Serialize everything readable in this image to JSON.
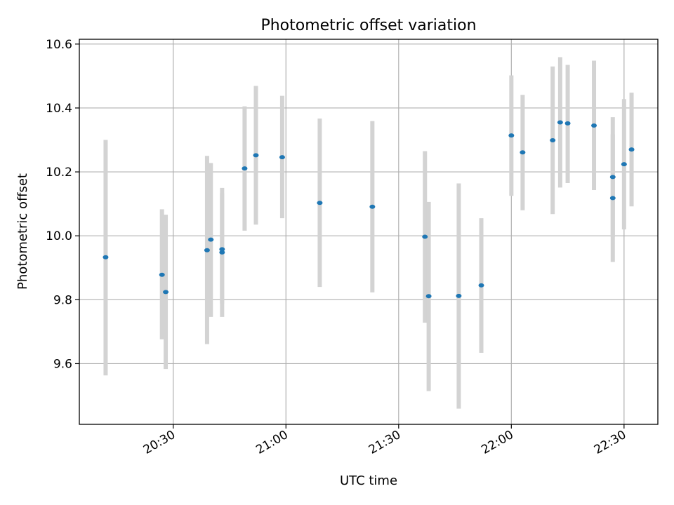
{
  "chart_data": {
    "type": "scatter",
    "title": "Photometric offset variation",
    "xlabel": "UTC time",
    "ylabel": "Photometric offset",
    "xlim": [
      "20:05",
      "22:39"
    ],
    "ylim": [
      9.41,
      10.615
    ],
    "x_ticks": [
      "20:30",
      "21:00",
      "21:30",
      "22:00",
      "22:30"
    ],
    "y_ticks": [
      "9.6",
      "9.8",
      "10.0",
      "10.2",
      "10.4",
      "10.6"
    ],
    "grid": true,
    "colors": {
      "point": "#1f77b4",
      "errorbar": "#d3d3d3",
      "grid": "#b0b0b0",
      "axes": "#000000"
    },
    "points": [
      {
        "x": "20:12",
        "y": 9.933,
        "yerr_low": 9.563,
        "yerr_high": 10.3
      },
      {
        "x": "20:27",
        "y": 9.878,
        "yerr_low": 9.676,
        "yerr_high": 10.083
      },
      {
        "x": "20:28",
        "y": 9.824,
        "yerr_low": 9.583,
        "yerr_high": 10.066
      },
      {
        "x": "20:39",
        "y": 9.955,
        "yerr_low": 9.661,
        "yerr_high": 10.25
      },
      {
        "x": "20:40",
        "y": 9.988,
        "yerr_low": 9.746,
        "yerr_high": 10.228
      },
      {
        "x": "20:43",
        "y": 9.948,
        "yerr_low": 9.746,
        "yerr_high": 10.15
      },
      {
        "x": "20:43",
        "y": 9.958,
        "yerr_low": 9.788,
        "yerr_high": 10.133
      },
      {
        "x": "20:49",
        "y": 10.211,
        "yerr_low": 10.016,
        "yerr_high": 10.405
      },
      {
        "x": "20:52",
        "y": 10.252,
        "yerr_low": 10.035,
        "yerr_high": 10.469
      },
      {
        "x": "20:59",
        "y": 10.246,
        "yerr_low": 10.055,
        "yerr_high": 10.438
      },
      {
        "x": "21:09",
        "y": 10.103,
        "yerr_low": 9.84,
        "yerr_high": 10.367
      },
      {
        "x": "21:23",
        "y": 10.091,
        "yerr_low": 9.823,
        "yerr_high": 10.359
      },
      {
        "x": "21:37",
        "y": 9.997,
        "yerr_low": 9.728,
        "yerr_high": 10.265
      },
      {
        "x": "21:38",
        "y": 9.811,
        "yerr_low": 9.514,
        "yerr_high": 10.106
      },
      {
        "x": "21:46",
        "y": 9.812,
        "yerr_low": 9.459,
        "yerr_high": 10.164
      },
      {
        "x": "21:52",
        "y": 9.845,
        "yerr_low": 9.634,
        "yerr_high": 10.055
      },
      {
        "x": "22:00",
        "y": 10.314,
        "yerr_low": 10.125,
        "yerr_high": 10.502
      },
      {
        "x": "22:03",
        "y": 10.261,
        "yerr_low": 10.08,
        "yerr_high": 10.441
      },
      {
        "x": "22:11",
        "y": 10.299,
        "yerr_low": 10.068,
        "yerr_high": 10.53
      },
      {
        "x": "22:13",
        "y": 10.355,
        "yerr_low": 10.151,
        "yerr_high": 10.559
      },
      {
        "x": "22:15",
        "y": 10.352,
        "yerr_low": 10.165,
        "yerr_high": 10.535
      },
      {
        "x": "22:22",
        "y": 10.345,
        "yerr_low": 10.143,
        "yerr_high": 10.548
      },
      {
        "x": "22:27",
        "y": 10.118,
        "yerr_low": 9.918,
        "yerr_high": 10.318
      },
      {
        "x": "22:27",
        "y": 10.184,
        "yerr_low": 9.996,
        "yerr_high": 10.371
      },
      {
        "x": "22:30",
        "y": 10.224,
        "yerr_low": 10.02,
        "yerr_high": 10.428
      },
      {
        "x": "22:32",
        "y": 10.27,
        "yerr_low": 10.092,
        "yerr_high": 10.448
      }
    ]
  }
}
